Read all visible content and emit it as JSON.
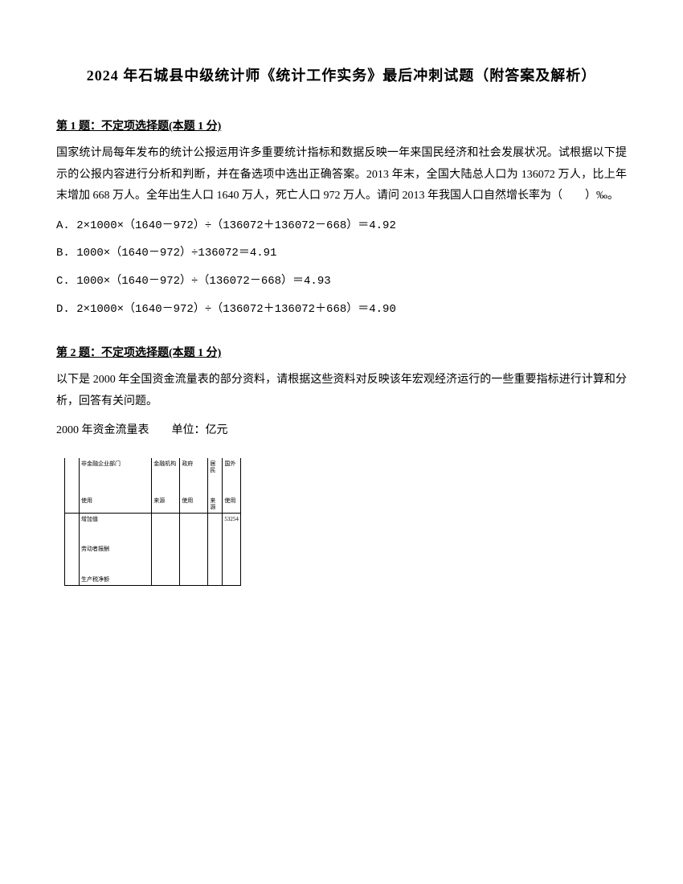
{
  "title": "2024 年石城县中级统计师《统计工作实务》最后冲刺试题（附答案及解析）",
  "q1": {
    "header": "第 1 题：不定项选择题(本题 1 分)",
    "body": "国家统计局每年发布的统计公报运用许多重要统计指标和数据反映一年来国民经济和社会发展状况。试根据以下提示的公报内容进行分析和判断，并在备选项中选出正确答案。2013 年末，全国大陆总人口为 136072 万人，比上年末增加 668 万人。全年出生人口 1640 万人，死亡人口 972 万人。请问 2013 年我国人口自然增长率为（　　）‰。",
    "options": {
      "a": "A. 2×1000×（1640－972）÷（136072＋136072－668）＝4.92",
      "b": "B. 1000×（1640－972）÷136072＝4.91",
      "c": "C. 1000×（1640－972）÷（136072－668）＝4.93",
      "d": "D. 2×1000×（1640－972）÷（136072＋136072＋668）＝4.90"
    }
  },
  "q2": {
    "header": "第 2 题：不定项选择题(本题 1 分)",
    "body": "以下是 2000 年全国资金流量表的部分资料，请根据这些资料对反映该年宏观经济运行的一些重要指标进行计算和分析，回答有关问题。",
    "caption": "2000 年资金流量表　　单位：亿元",
    "table": {
      "r1c2": "非金融企业部门",
      "r1c3": "金融机构",
      "r1c4": "政府",
      "r1c5": "居民",
      "r1c6": "国外",
      "r2c2": "使用",
      "r2c3": "来源",
      "r2c4": "使用",
      "r2c5": "来源",
      "r2c6": "使用",
      "r3c1": "增加值",
      "r3c6": "53254",
      "r4c1": "劳动者报酬",
      "r5c1": "生产税净额"
    }
  }
}
